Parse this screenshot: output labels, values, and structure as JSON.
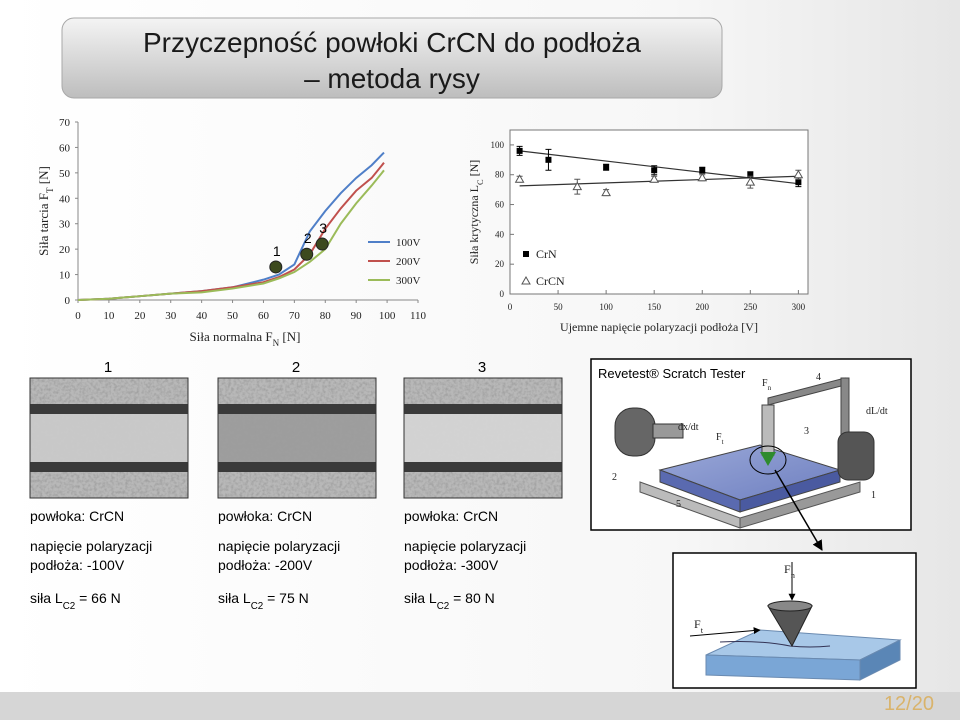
{
  "title": [
    "Przyczepność powłoki CrCN do podłoża",
    "– metoda rysy"
  ],
  "chart_data": [
    {
      "type": "line",
      "xlabel": {
        "text": "Siła normalna F",
        "sub": "N",
        "suffix": " [N]"
      },
      "ylabel": {
        "text": "Siła tarcia F",
        "sub": "T",
        "suffix": " [N]"
      },
      "x": [
        0,
        10,
        20,
        30,
        40,
        50,
        60,
        65,
        70,
        75,
        80,
        85,
        90,
        95,
        99
      ],
      "series": [
        {
          "name": "100V",
          "color": "#4f7fc8",
          "values": [
            0,
            0.5,
            1.5,
            2.5,
            3.5,
            5,
            8,
            10,
            14,
            27,
            35,
            42,
            48,
            53,
            58
          ]
        },
        {
          "name": "200V",
          "color": "#c0504d",
          "values": [
            0,
            0.5,
            1.5,
            2.5,
            3.5,
            5,
            7,
            9,
            12,
            18,
            28,
            36,
            43,
            48,
            54
          ]
        },
        {
          "name": "300V",
          "color": "#9bbb59",
          "values": [
            0,
            0.5,
            1.5,
            2.5,
            3,
            4.5,
            6.5,
            8.5,
            11,
            15,
            20,
            30,
            38,
            45,
            51
          ]
        }
      ],
      "annotations": [
        {
          "label": "1",
          "x": 64,
          "y": 13,
          "color": "#3d4a1e"
        },
        {
          "label": "2",
          "x": 74,
          "y": 18,
          "color": "#3d4a1e"
        },
        {
          "label": "3",
          "x": 79,
          "y": 22,
          "color": "#3d4a1e"
        }
      ],
      "xlim": [
        0,
        110
      ],
      "xticks": [
        0,
        10,
        20,
        30,
        40,
        50,
        60,
        70,
        80,
        90,
        100,
        110
      ],
      "ylim": [
        0,
        70
      ],
      "yticks": [
        0,
        10,
        20,
        30,
        40,
        50,
        60,
        70
      ],
      "legend": "center right",
      "grid": false
    },
    {
      "type": "scatter",
      "xlabel": "Ujemne napięcie polaryzacji podłoża [V]",
      "ylabel": {
        "text": "Siła krytyczna L",
        "sub": "C",
        "suffix": " [N]"
      },
      "series": [
        {
          "name": "CrN",
          "color": "#000000",
          "marker": "square",
          "x": [
            10,
            40,
            100,
            150,
            200,
            250,
            300
          ],
          "values": [
            96,
            90,
            85,
            83,
            83,
            80,
            75
          ],
          "errors": [
            3,
            7,
            2,
            3,
            2,
            2,
            3
          ],
          "trend": {
            "x": [
              10,
              300
            ],
            "y": [
              96,
              74
            ]
          }
        },
        {
          "name": "CrCN",
          "color": "#555555",
          "marker": "triangle",
          "x": [
            10,
            70,
            100,
            150,
            200,
            250,
            300
          ],
          "values": [
            77,
            72,
            68,
            77,
            78,
            75,
            80
          ],
          "errors": [
            2,
            5,
            2,
            2,
            2,
            4,
            3
          ],
          "trend": {
            "x": [
              10,
              300
            ],
            "y": [
              72.5,
              79
            ]
          }
        }
      ],
      "xlim": [
        0,
        310
      ],
      "xticks": [
        0,
        50,
        100,
        150,
        200,
        250,
        300
      ],
      "ylim": [
        0,
        110
      ],
      "yticks": [
        0,
        20,
        40,
        60,
        80,
        100
      ],
      "legend": "lower left",
      "grid": false
    }
  ],
  "micrographs": [
    {
      "label": "1",
      "coating": "powłoka: CrCN",
      "bias": [
        "napięcie polaryzacji",
        "podłoża: -100V"
      ],
      "load": {
        "text": "siła L",
        "sub": "C2",
        "suffix": " = 66 N"
      }
    },
    {
      "label": "2",
      "coating": "powłoka: CrCN",
      "bias": [
        "napięcie polaryzacji",
        "podłoża: -200V"
      ],
      "load": {
        "text": "siła L",
        "sub": "C2",
        "suffix": " = 75 N"
      }
    },
    {
      "label": "3",
      "coating": "powłoka: CrCN",
      "bias": [
        "napięcie polaryzacji",
        "podłoża: -300V"
      ],
      "load": {
        "text": "siła L",
        "sub": "C2",
        "suffix": " = 80 N"
      }
    }
  ],
  "tester": {
    "title": "Revetest® Scratch Tester",
    "fn": {
      "text": "F",
      "sub": "n",
      "suffix": ""
    },
    "ft": {
      "text": "F",
      "sub": "t",
      "suffix": ""
    },
    "dx": "dx/dt",
    "dl": "dL/dt",
    "parts": [
      "1",
      "2",
      "3",
      "4",
      "5"
    ]
  },
  "inset": {
    "fn": {
      "text": "F",
      "sub": "n",
      "suffix": ""
    },
    "ft": {
      "text": "F",
      "sub": "t",
      "suffix": ""
    }
  },
  "page_number": "12/20"
}
